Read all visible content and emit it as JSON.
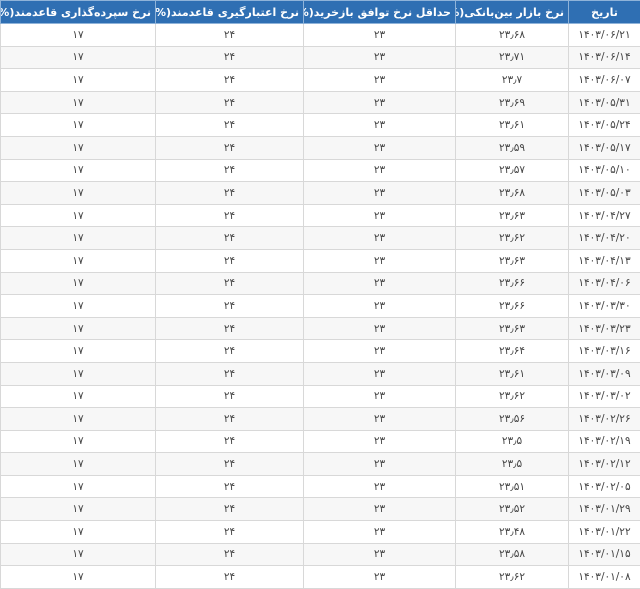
{
  "table": {
    "headers": [
      "تاریخ",
      "نرخ بازار بین‌بانکی(%)",
      "حداقل نرخ توافق بازخرید(%)",
      "نرخ اعتبارگیری قاعدمند(%)",
      "نرخ سپرده‌گذاری قاعدمند(%)"
    ],
    "rows": [
      [
        "۱۴۰۳/۰۶/۲۱",
        "۲۳٫۶۸",
        "۲۳",
        "۲۴",
        "۱۷"
      ],
      [
        "۱۴۰۳/۰۶/۱۴",
        "۲۳٫۷۱",
        "۲۳",
        "۲۴",
        "۱۷"
      ],
      [
        "۱۴۰۳/۰۶/۰۷",
        "۲۳٫۷",
        "۲۳",
        "۲۴",
        "۱۷"
      ],
      [
        "۱۴۰۳/۰۵/۳۱",
        "۲۳٫۶۹",
        "۲۳",
        "۲۴",
        "۱۷"
      ],
      [
        "۱۴۰۳/۰۵/۲۴",
        "۲۳٫۶۱",
        "۲۳",
        "۲۴",
        "۱۷"
      ],
      [
        "۱۴۰۳/۰۵/۱۷",
        "۲۳٫۵۹",
        "۲۳",
        "۲۴",
        "۱۷"
      ],
      [
        "۱۴۰۳/۰۵/۱۰",
        "۲۳٫۵۷",
        "۲۳",
        "۲۴",
        "۱۷"
      ],
      [
        "۱۴۰۳/۰۵/۰۳",
        "۲۳٫۶۸",
        "۲۳",
        "۲۴",
        "۱۷"
      ],
      [
        "۱۴۰۳/۰۴/۲۷",
        "۲۳٫۶۳",
        "۲۳",
        "۲۴",
        "۱۷"
      ],
      [
        "۱۴۰۳/۰۴/۲۰",
        "۲۳٫۶۲",
        "۲۳",
        "۲۴",
        "۱۷"
      ],
      [
        "۱۴۰۳/۰۴/۱۳",
        "۲۳٫۶۳",
        "۲۳",
        "۲۴",
        "۱۷"
      ],
      [
        "۱۴۰۳/۰۴/۰۶",
        "۲۳٫۶۶",
        "۲۳",
        "۲۴",
        "۱۷"
      ],
      [
        "۱۴۰۳/۰۳/۳۰",
        "۲۳٫۶۶",
        "۲۳",
        "۲۴",
        "۱۷"
      ],
      [
        "۱۴۰۳/۰۳/۲۳",
        "۲۳٫۶۳",
        "۲۳",
        "۲۴",
        "۱۷"
      ],
      [
        "۱۴۰۳/۰۳/۱۶",
        "۲۳٫۶۴",
        "۲۳",
        "۲۴",
        "۱۷"
      ],
      [
        "۱۴۰۳/۰۳/۰۹",
        "۲۳٫۶۱",
        "۲۳",
        "۲۴",
        "۱۷"
      ],
      [
        "۱۴۰۳/۰۳/۰۲",
        "۲۳٫۶۲",
        "۲۳",
        "۲۴",
        "۱۷"
      ],
      [
        "۱۴۰۳/۰۲/۲۶",
        "۲۳٫۵۶",
        "۲۳",
        "۲۴",
        "۱۷"
      ],
      [
        "۱۴۰۳/۰۲/۱۹",
        "۲۳٫۵",
        "۲۳",
        "۲۴",
        "۱۷"
      ],
      [
        "۱۴۰۳/۰۲/۱۲",
        "۲۳٫۵",
        "۲۳",
        "۲۴",
        "۱۷"
      ],
      [
        "۱۴۰۳/۰۲/۰۵",
        "۲۳٫۵۱",
        "۲۳",
        "۲۴",
        "۱۷"
      ],
      [
        "۱۴۰۳/۰۱/۲۹",
        "۲۳٫۵۲",
        "۲۳",
        "۲۴",
        "۱۷"
      ],
      [
        "۱۴۰۳/۰۱/۲۲",
        "۲۳٫۴۸",
        "۲۳",
        "۲۴",
        "۱۷"
      ],
      [
        "۱۴۰۳/۰۱/۱۵",
        "۲۳٫۵۸",
        "۲۳",
        "۲۴",
        "۱۷"
      ],
      [
        "۱۴۰۳/۰۱/۰۸",
        "۲۳٫۶۲",
        "۲۳",
        "۲۴",
        "۱۷"
      ]
    ]
  },
  "colors": {
    "header_bg": "#2f6fb3",
    "header_text": "#ffffff"
  }
}
